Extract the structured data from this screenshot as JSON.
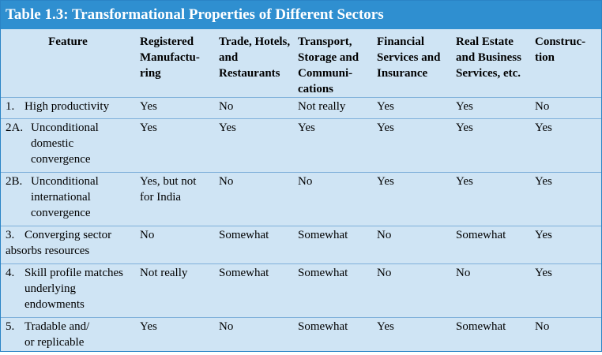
{
  "title": "Table 1.3: Transformational Properties of Different Sectors",
  "headers": {
    "feature": [
      "Feature"
    ],
    "c1": [
      "Registered",
      "Manufactu-",
      "ring"
    ],
    "c2": [
      "Trade, Hotels,",
      "and",
      "Restaurants"
    ],
    "c3": [
      "Transport,",
      "Storage and",
      "Communi-",
      "cations"
    ],
    "c4": [
      "Financial",
      "Services and",
      "Insurance"
    ],
    "c5": [
      "Real Estate",
      "and Business",
      "Services, etc."
    ],
    "c6": [
      "Construc-",
      "tion"
    ]
  },
  "rows": [
    {
      "num": "1.",
      "feature": [
        "High productivity"
      ],
      "values": [
        [
          "Yes"
        ],
        [
          "No"
        ],
        [
          "Not really"
        ],
        [
          "Yes"
        ],
        [
          "Yes"
        ],
        [
          "No"
        ]
      ]
    },
    {
      "num": "2A.",
      "feature": [
        "Unconditional",
        "domestic",
        "convergence"
      ],
      "values": [
        [
          "Yes"
        ],
        [
          "Yes"
        ],
        [
          "Yes"
        ],
        [
          "Yes"
        ],
        [
          "Yes"
        ],
        [
          "Yes"
        ]
      ]
    },
    {
      "num": "2B.",
      "feature": [
        "Unconditional",
        "international",
        "convergence"
      ],
      "values": [
        [
          "Yes, but not",
          "for India"
        ],
        [
          "No"
        ],
        [
          "No"
        ],
        [
          "Yes"
        ],
        [
          "Yes"
        ],
        [
          "Yes"
        ]
      ]
    },
    {
      "num": "3.",
      "feature": [
        "Converging sector",
        "absorbs resources"
      ],
      "values": [
        [
          "No"
        ],
        [
          "Somewhat"
        ],
        [
          "Somewhat"
        ],
        [
          "No"
        ],
        [
          "Somewhat"
        ],
        [
          "Yes"
        ]
      ]
    },
    {
      "num": "4.",
      "feature": [
        "Skill profile matches",
        "underlying",
        "endowments"
      ],
      "values": [
        [
          "Not really"
        ],
        [
          "Somewhat"
        ],
        [
          "Somewhat"
        ],
        [
          "No"
        ],
        [
          "No"
        ],
        [
          "Yes"
        ]
      ]
    },
    {
      "num": "5.",
      "feature": [
        "Tradable and/",
        "or replicable"
      ],
      "values": [
        [
          "Yes"
        ],
        [
          "No"
        ],
        [
          "Somewhat"
        ],
        [
          "Yes"
        ],
        [
          "Somewhat"
        ],
        [
          "No"
        ]
      ]
    }
  ],
  "colors": {
    "title_bg": "#2f8fd0",
    "table_bg": "#cfe4f4",
    "rule": "#7fb0da"
  }
}
